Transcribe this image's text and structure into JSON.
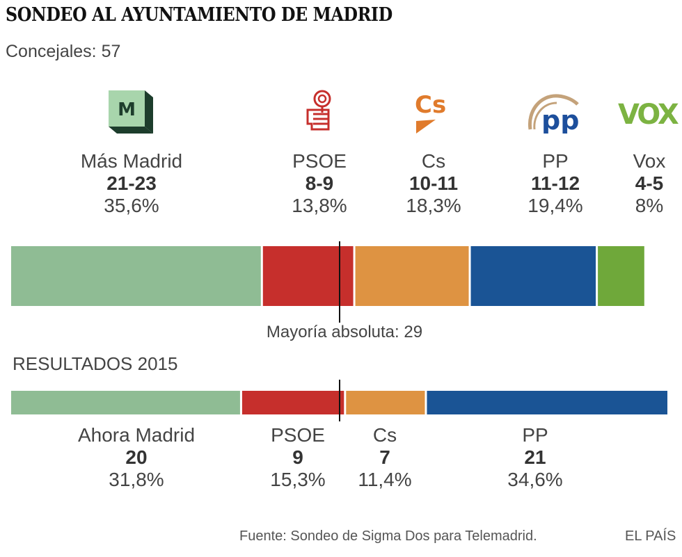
{
  "title": "SONDEO AL AYUNTAMIENTO DE MADRID",
  "subtitle": "Concejales: 57",
  "colors": {
    "mas_madrid": "#8fbc94",
    "psoe": "#c62f2c",
    "cs": "#de9342",
    "pp": "#1a5495",
    "vox": "#6fa83a"
  },
  "logos": {
    "mas_madrid": {
      "icon": "mas-madrid-logo",
      "text": "M"
    },
    "psoe": {
      "icon": "psoe-rose-logo"
    },
    "cs": {
      "icon": "ciudadanos-logo",
      "text": "Cs"
    },
    "pp": {
      "icon": "pp-logo",
      "text": "pp"
    },
    "vox": {
      "icon": "vox-logo",
      "text": "VOX"
    }
  },
  "chart_data": [
    {
      "type": "bar",
      "orientation": "horizontal-stacked",
      "total_seats": 57,
      "majority": 29,
      "majority_label": "Mayoría absoluta: 29",
      "parties": [
        {
          "name": "Más Madrid",
          "seats": "21-23",
          "percent": "35,6%",
          "share": 21.8
        },
        {
          "name": "PSOE",
          "seats": "8-9",
          "percent": "13,8%",
          "share": 8.0
        },
        {
          "name": "Cs",
          "seats": "10-11",
          "percent": "18,3%",
          "share": 10.0
        },
        {
          "name": "PP",
          "seats": "11-12",
          "percent": "19,4%",
          "share": 11.0
        },
        {
          "name": "Vox",
          "seats": "4-5",
          "percent": "8%",
          "share": 4.2
        }
      ]
    },
    {
      "type": "bar",
      "orientation": "horizontal-stacked",
      "title": "RESULTADOS 2015",
      "total_seats": 57,
      "majority": 29,
      "parties": [
        {
          "name": "Ahora Madrid",
          "seats": "20",
          "percent": "31,8%",
          "share": 20
        },
        {
          "name": "PSOE",
          "seats": "9",
          "percent": "15,3%",
          "share": 9
        },
        {
          "name": "Cs",
          "seats": "7",
          "percent": "11,4%",
          "share": 7
        },
        {
          "name": "PP",
          "seats": "21",
          "percent": "34,6%",
          "share": 21
        }
      ]
    }
  ],
  "footer": {
    "source": "Fuente: Sondeo de Sigma Dos para Telemadrid.",
    "brand": "EL PAÍS"
  }
}
